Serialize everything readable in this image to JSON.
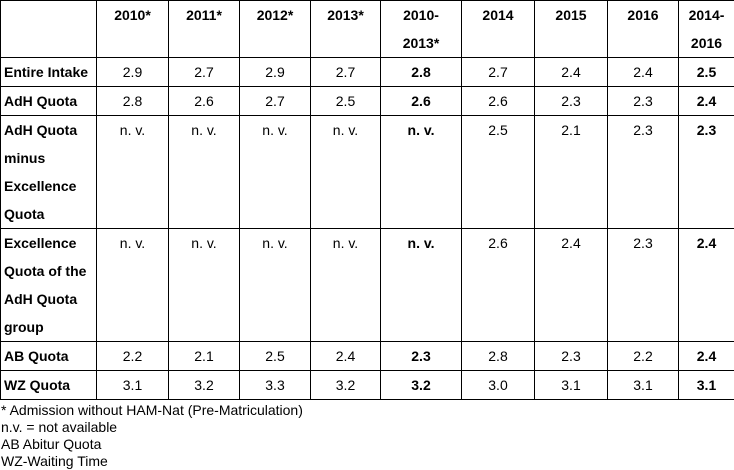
{
  "table": {
    "headers": [
      "",
      "2010*",
      "2011*",
      "2012*",
      "2013*",
      "2010-\n2013*",
      "2014",
      "2015",
      "2016",
      "2014-\n2016"
    ],
    "rows": [
      {
        "label": "Entire Intake",
        "values": [
          "2.9",
          "2.7",
          "2.9",
          "2.7",
          "2.8",
          "2.7",
          "2.4",
          "2.4",
          "2.5"
        ]
      },
      {
        "label": "AdH Quota",
        "values": [
          "2.8",
          "2.6",
          "2.7",
          "2.5",
          "2.6",
          "2.6",
          "2.3",
          "2.3",
          "2.4"
        ]
      },
      {
        "label": "AdH Quota minus Excellence Quota",
        "values": [
          "n. v.",
          "n. v.",
          "n. v.",
          "n. v.",
          "n. v.",
          "2.5",
          "2.1",
          "2.3",
          "2.3"
        ]
      },
      {
        "label": "Excellence Quota of the AdH Quota group",
        "values": [
          "n. v.",
          "n. v.",
          "n. v.",
          "n. v.",
          "n. v.",
          "2.6",
          "2.4",
          "2.3",
          "2.4"
        ]
      },
      {
        "label": "AB Quota",
        "values": [
          "2.2",
          "2.1",
          "2.5",
          "2.4",
          "2.3",
          "2.8",
          "2.3",
          "2.2",
          "2.4"
        ]
      },
      {
        "label": "WZ Quota",
        "values": [
          "3.1",
          "3.2",
          "3.3",
          "3.2",
          "3.2",
          "3.0",
          "3.1",
          "3.1",
          "3.1"
        ]
      }
    ]
  },
  "notes": [
    "* Admission without HAM-Nat (Pre-Matriculation)",
    "n.v. = not available",
    "AB Abitur Quota",
    "WZ-Waiting Time"
  ]
}
